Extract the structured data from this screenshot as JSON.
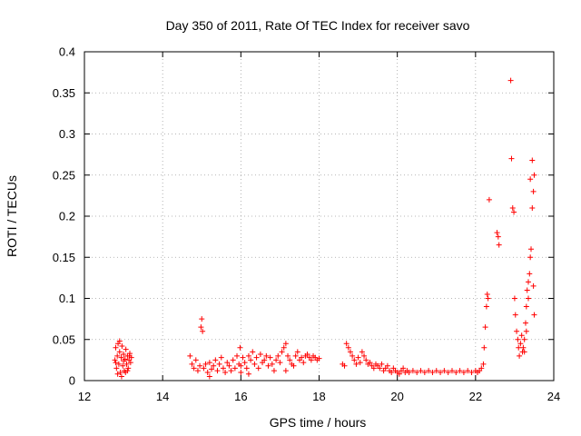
{
  "chart_data": {
    "type": "scatter",
    "title": "Day 350 of 2011, Rate Of TEC Index for receiver savo",
    "xlabel": "GPS time / hours",
    "ylabel": "ROTI / TECUs",
    "xlim": [
      12,
      24
    ],
    "ylim": [
      0,
      0.4
    ],
    "x_ticks": [
      "12",
      "14",
      "16",
      "18",
      "20",
      "22",
      "24"
    ],
    "y_ticks": [
      "0",
      "0.05",
      "0.1",
      "0.15",
      "0.2",
      "0.25",
      "0.3",
      "0.35",
      "0.4"
    ],
    "grid": true,
    "legend": "none",
    "marker": "plus",
    "color": "#ff0000",
    "series": [
      {
        "points": [
          [
            12.78,
            0.025
          ],
          [
            12.8,
            0.04
          ],
          [
            12.82,
            0.015
          ],
          [
            12.84,
            0.03
          ],
          [
            12.86,
            0.045
          ],
          [
            12.88,
            0.02
          ],
          [
            12.9,
            0.035
          ],
          [
            12.92,
            0.01
          ],
          [
            12.94,
            0.028
          ],
          [
            12.96,
            0.042
          ],
          [
            12.98,
            0.018
          ],
          [
            13.0,
            0.032
          ],
          [
            13.02,
            0.012
          ],
          [
            13.04,
            0.026
          ],
          [
            13.06,
            0.038
          ],
          [
            13.08,
            0.02
          ],
          [
            13.1,
            0.03
          ],
          [
            13.12,
            0.015
          ],
          [
            13.14,
            0.025
          ],
          [
            13.16,
            0.033
          ],
          [
            13.18,
            0.022
          ],
          [
            13.2,
            0.028
          ],
          [
            12.85,
            0.008
          ],
          [
            12.95,
            0.005
          ],
          [
            13.05,
            0.01
          ],
          [
            12.8,
            0.022
          ],
          [
            12.9,
            0.048
          ],
          [
            13.0,
            0.024
          ],
          [
            13.1,
            0.012
          ],
          [
            13.15,
            0.03
          ],
          [
            14.7,
            0.03
          ],
          [
            14.75,
            0.02
          ],
          [
            14.8,
            0.015
          ],
          [
            14.85,
            0.025
          ],
          [
            14.9,
            0.012
          ],
          [
            14.95,
            0.018
          ],
          [
            14.98,
            0.065
          ],
          [
            15.0,
            0.075
          ],
          [
            15.02,
            0.06
          ],
          [
            15.05,
            0.015
          ],
          [
            15.1,
            0.02
          ],
          [
            15.15,
            0.01
          ],
          [
            15.2,
            0.022
          ],
          [
            15.25,
            0.014
          ],
          [
            15.3,
            0.018
          ],
          [
            15.35,
            0.025
          ],
          [
            15.4,
            0.012
          ],
          [
            15.45,
            0.02
          ],
          [
            15.5,
            0.028
          ],
          [
            15.55,
            0.015
          ],
          [
            15.6,
            0.01
          ],
          [
            15.65,
            0.022
          ],
          [
            15.7,
            0.018
          ],
          [
            15.75,
            0.012
          ],
          [
            15.8,
            0.025
          ],
          [
            15.85,
            0.015
          ],
          [
            15.9,
            0.03
          ],
          [
            15.95,
            0.02
          ],
          [
            15.98,
            0.04
          ],
          [
            16.0,
            0.018
          ],
          [
            16.05,
            0.028
          ],
          [
            16.1,
            0.022
          ],
          [
            16.15,
            0.015
          ],
          [
            16.2,
            0.03
          ],
          [
            16.25,
            0.025
          ],
          [
            16.3,
            0.035
          ],
          [
            16.35,
            0.02
          ],
          [
            16.4,
            0.028
          ],
          [
            16.45,
            0.015
          ],
          [
            16.5,
            0.032
          ],
          [
            16.55,
            0.022
          ],
          [
            16.6,
            0.025
          ],
          [
            16.65,
            0.03
          ],
          [
            16.7,
            0.018
          ],
          [
            16.75,
            0.028
          ],
          [
            16.8,
            0.02
          ],
          [
            16.85,
            0.012
          ],
          [
            16.9,
            0.025
          ],
          [
            16.95,
            0.03
          ],
          [
            17.0,
            0.022
          ],
          [
            17.05,
            0.035
          ],
          [
            17.1,
            0.04
          ],
          [
            17.15,
            0.045
          ],
          [
            17.2,
            0.03
          ],
          [
            17.25,
            0.025
          ],
          [
            17.3,
            0.02
          ],
          [
            17.35,
            0.018
          ],
          [
            17.4,
            0.03
          ],
          [
            17.45,
            0.035
          ],
          [
            17.5,
            0.025
          ],
          [
            17.55,
            0.028
          ],
          [
            17.6,
            0.022
          ],
          [
            17.65,
            0.03
          ],
          [
            17.7,
            0.032
          ],
          [
            17.75,
            0.028
          ],
          [
            17.8,
            0.025
          ],
          [
            17.85,
            0.03
          ],
          [
            17.9,
            0.028
          ],
          [
            17.95,
            0.025
          ],
          [
            18.0,
            0.027
          ],
          [
            16.0,
            0.01
          ],
          [
            16.2,
            0.008
          ],
          [
            15.2,
            0.005
          ],
          [
            17.15,
            0.012
          ],
          [
            18.6,
            0.02
          ],
          [
            18.65,
            0.018
          ],
          [
            18.7,
            0.045
          ],
          [
            18.75,
            0.04
          ],
          [
            18.8,
            0.035
          ],
          [
            18.85,
            0.03
          ],
          [
            18.9,
            0.025
          ],
          [
            18.95,
            0.02
          ],
          [
            19.0,
            0.028
          ],
          [
            19.05,
            0.022
          ],
          [
            19.1,
            0.035
          ],
          [
            19.15,
            0.03
          ],
          [
            19.2,
            0.025
          ],
          [
            19.25,
            0.02
          ],
          [
            19.3,
            0.022
          ],
          [
            19.35,
            0.018
          ],
          [
            19.4,
            0.015
          ],
          [
            19.45,
            0.02
          ],
          [
            19.5,
            0.018
          ],
          [
            19.55,
            0.015
          ],
          [
            19.6,
            0.02
          ],
          [
            19.65,
            0.012
          ],
          [
            19.7,
            0.015
          ],
          [
            19.75,
            0.018
          ],
          [
            19.8,
            0.012
          ],
          [
            19.85,
            0.01
          ],
          [
            19.9,
            0.015
          ],
          [
            19.95,
            0.012
          ],
          [
            20.0,
            0.01
          ],
          [
            20.05,
            0.008
          ],
          [
            20.1,
            0.012
          ],
          [
            20.15,
            0.015
          ],
          [
            20.2,
            0.01
          ],
          [
            20.25,
            0.012
          ],
          [
            20.3,
            0.01
          ],
          [
            20.4,
            0.012
          ],
          [
            20.5,
            0.01
          ],
          [
            20.6,
            0.012
          ],
          [
            20.7,
            0.01
          ],
          [
            20.8,
            0.012
          ],
          [
            20.9,
            0.01
          ],
          [
            21.0,
            0.012
          ],
          [
            21.1,
            0.01
          ],
          [
            21.2,
            0.012
          ],
          [
            21.3,
            0.01
          ],
          [
            21.4,
            0.012
          ],
          [
            21.5,
            0.01
          ],
          [
            21.6,
            0.012
          ],
          [
            21.7,
            0.01
          ],
          [
            21.8,
            0.012
          ],
          [
            21.9,
            0.01
          ],
          [
            22.0,
            0.012
          ],
          [
            22.05,
            0.01
          ],
          [
            22.1,
            0.012
          ],
          [
            22.15,
            0.015
          ],
          [
            22.2,
            0.02
          ],
          [
            22.22,
            0.04
          ],
          [
            22.25,
            0.065
          ],
          [
            22.28,
            0.09
          ],
          [
            22.3,
            0.105
          ],
          [
            22.32,
            0.1
          ],
          [
            22.35,
            0.22
          ],
          [
            22.55,
            0.18
          ],
          [
            22.58,
            0.175
          ],
          [
            22.6,
            0.165
          ],
          [
            22.9,
            0.365
          ],
          [
            22.92,
            0.27
          ],
          [
            22.95,
            0.21
          ],
          [
            22.98,
            0.205
          ],
          [
            23.0,
            0.1
          ],
          [
            23.02,
            0.08
          ],
          [
            23.05,
            0.06
          ],
          [
            23.08,
            0.05
          ],
          [
            23.1,
            0.04
          ],
          [
            23.12,
            0.03
          ],
          [
            23.15,
            0.045
          ],
          [
            23.18,
            0.055
          ],
          [
            23.2,
            0.035
          ],
          [
            23.22,
            0.04
          ],
          [
            23.25,
            0.05
          ],
          [
            23.28,
            0.07
          ],
          [
            23.3,
            0.09
          ],
          [
            23.32,
            0.11
          ],
          [
            23.35,
            0.12
          ],
          [
            23.38,
            0.13
          ],
          [
            23.4,
            0.15
          ],
          [
            23.42,
            0.16
          ],
          [
            23.45,
            0.21
          ],
          [
            23.48,
            0.23
          ],
          [
            23.5,
            0.25
          ],
          [
            23.45,
            0.268
          ],
          [
            23.4,
            0.245
          ],
          [
            23.35,
            0.1
          ],
          [
            23.3,
            0.06
          ],
          [
            23.25,
            0.035
          ],
          [
            23.48,
            0.115
          ],
          [
            23.5,
            0.08
          ]
        ]
      }
    ]
  }
}
